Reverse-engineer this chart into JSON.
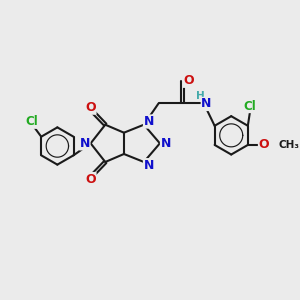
{
  "background_color": "#ebebeb",
  "bond_color": "#1a1a1a",
  "bond_width": 1.5,
  "atom_colors": {
    "N": "#1010cc",
    "O": "#cc1010",
    "Cl": "#22aa22",
    "C": "#1a1a1a",
    "H": "#44aaaa"
  },
  "font_size_atom": 8.5,
  "font_size_small": 7.5,
  "figsize": [
    3.0,
    3.0
  ],
  "dpi": 100
}
